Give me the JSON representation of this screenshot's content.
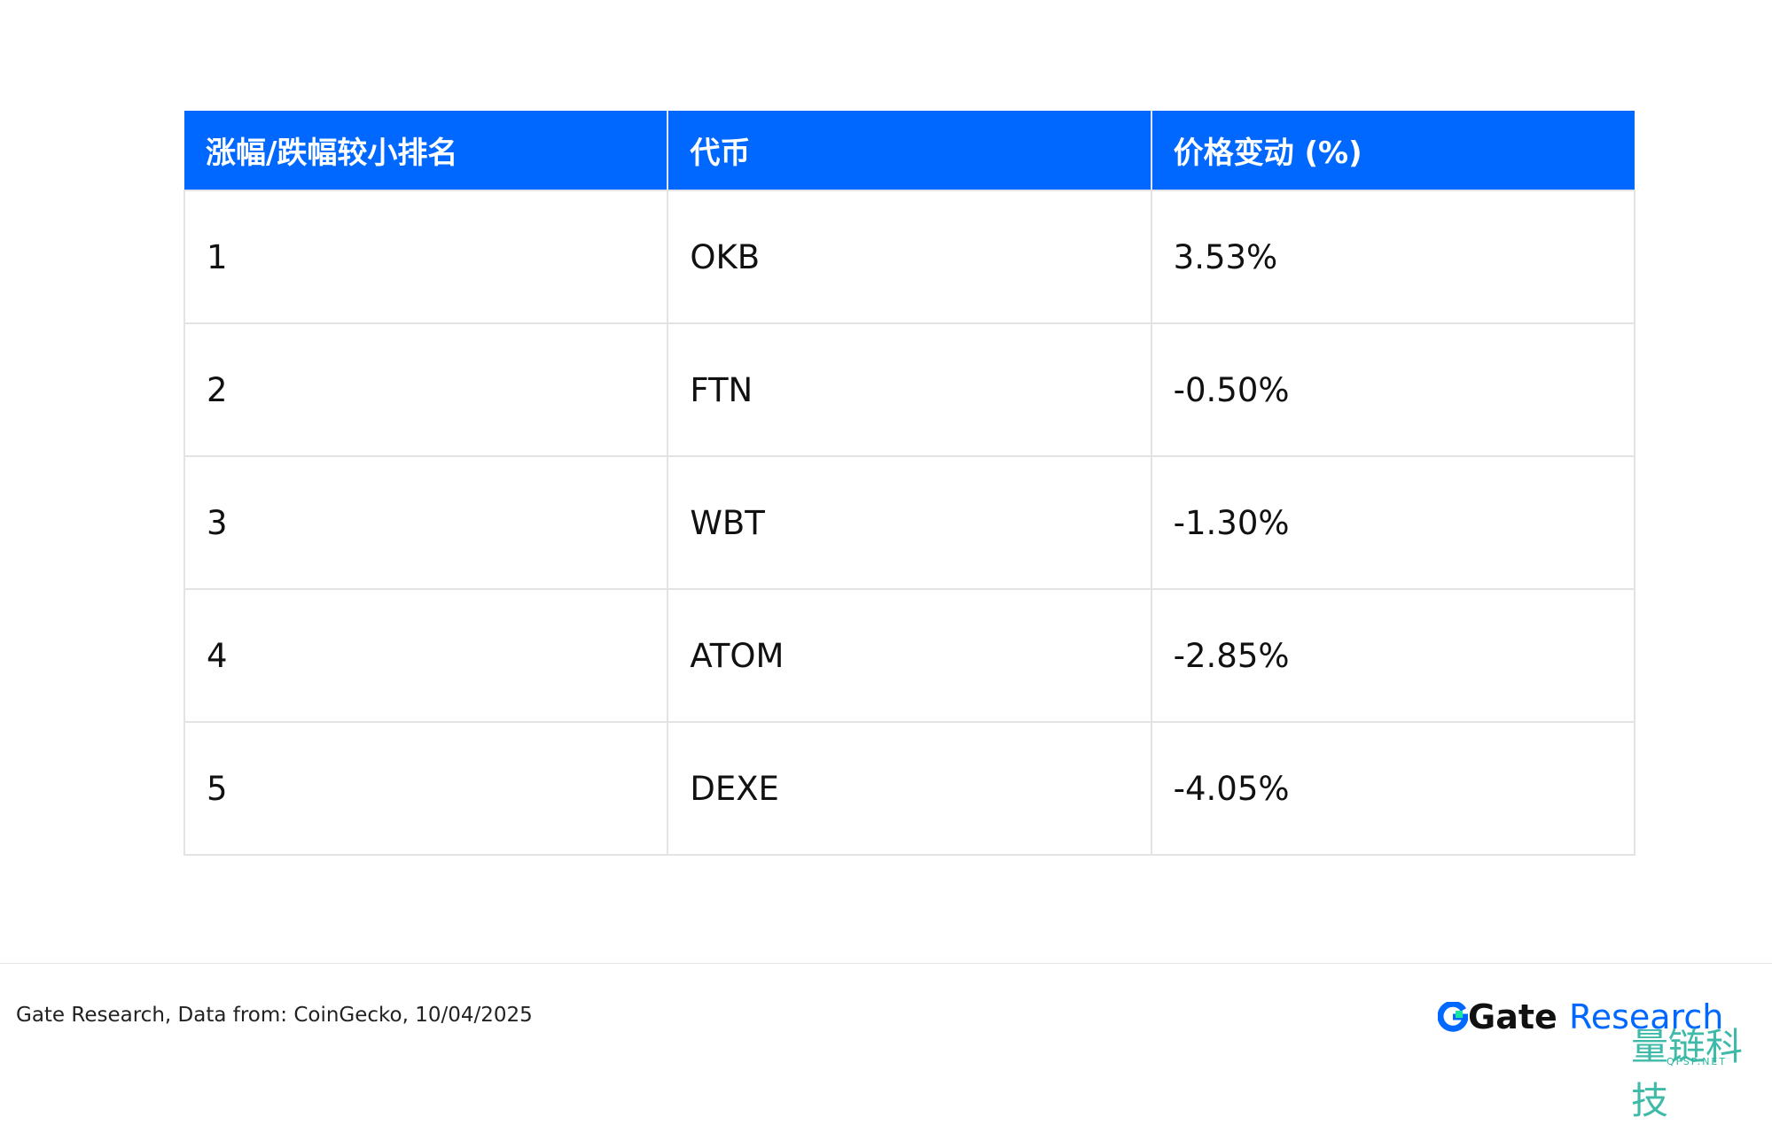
{
  "table": {
    "header": [
      "涨幅/跌幅较小排名",
      "代币",
      "价格变动 (%)"
    ],
    "rows": [
      [
        "1",
        "OKB",
        "3.53%"
      ],
      [
        "2",
        "FTN",
        "-0.50%"
      ],
      [
        "3",
        "WBT",
        "-1.30%"
      ],
      [
        "4",
        "ATOM",
        "-2.85%"
      ],
      [
        "5",
        "DEXE",
        "-4.05%"
      ]
    ]
  },
  "footer": {
    "source": "Gate Research, Data from: CoinGecko, 10/04/2025",
    "logo_gate": "Gate",
    "logo_research": "Research"
  },
  "watermark": {
    "text": "量链科技",
    "sub": "QFSP.NET"
  }
}
